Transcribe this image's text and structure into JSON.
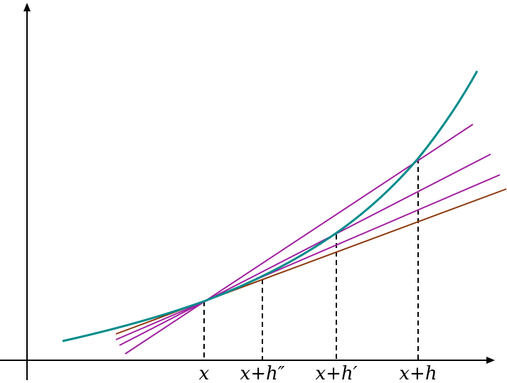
{
  "labels": [
    "x",
    "x+h″",
    "x+h′",
    "x+h"
  ]
}
